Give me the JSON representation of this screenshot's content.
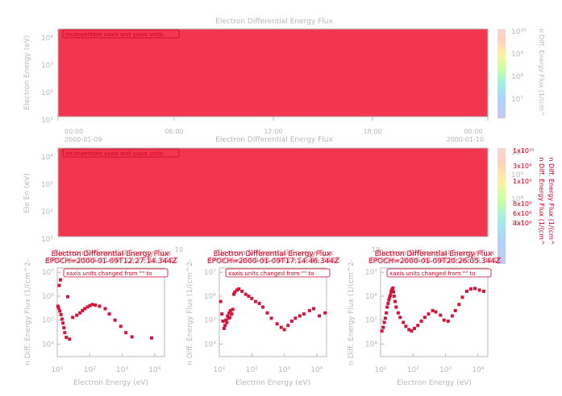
{
  "colors": {
    "spectrogram_fill": "#f23650",
    "error_red": "#cc0022",
    "axis_gray": "#b8b8b8",
    "point_red": "#d4143a",
    "colorbar_stops": [
      "#c8c8f0",
      "#b0d0ff",
      "#a0f0e0",
      "#c8ffa0",
      "#fff0a0",
      "#ffd0c0",
      "#f4d8d8"
    ]
  },
  "top_panel": {
    "title": "Electron Differential Energy Flux",
    "ylabel": "Electron Energy (eV)",
    "yticks": [
      "10⁴",
      "10³",
      "10²",
      "10¹"
    ],
    "xticks": [
      "00:00",
      "06:00",
      "12:00",
      "18:00",
      "00:00"
    ],
    "date_left": "2000-01-09",
    "date_right": "2000-01-10",
    "message": "inconvertible xaxis and yaxis units",
    "colorbar_label": "n Diff. Energy Flux (1/(cm^",
    "colorbar_ticks": [
      "10¹⁰",
      "10⁹",
      "10⁸",
      "10⁷"
    ]
  },
  "middle_panel": {
    "title": "Electron Differential Energy Flux",
    "ylabel": "Ele En (eV)",
    "yticks": [
      "10⁴",
      "10³",
      "10²",
      "10¹"
    ],
    "message": "inconvertible xaxis and yaxis units",
    "colorbar_label": "n Diff. Energy Flux (1/(cm^",
    "colorbar_label_overlay": "n Diff. Energy Flux (1/(cm^",
    "colorbar_ticks_gray": [
      "10¹⁰",
      "10⁹",
      "10⁸",
      "10⁷"
    ],
    "colorbar_ticks_red": [
      "1x10¹⁰",
      "3x10⁹",
      "1x10⁹",
      "8x10⁸",
      "6x10⁸",
      "4x10⁸"
    ],
    "xtick_fragments": [
      "10",
      "18"
    ]
  },
  "bottom_panels": {
    "title": "Electron Differential Energy Flux",
    "ylabel": "n Diff. Energy Flux (1/(cm^2-",
    "xlabel": "Electron Energy (eV)",
    "message": "xaxis units changed from \"\" to",
    "xticks": [
      "10¹",
      "10²",
      "10³",
      "10⁴"
    ],
    "yticks": [
      "10⁷",
      "10⁶",
      "10⁵",
      "10⁴"
    ],
    "epochs": [
      "EPOCH=2000-01-09T12:27:14.344Z",
      "EPOCH=2000-01-09T17:14:46.344Z",
      "EPOCH=2000-01-09T20:26:05.344Z"
    ]
  },
  "chart_data": [
    {
      "type": "heatmap",
      "title": "Electron Differential Energy Flux",
      "ylabel": "Electron Energy (eV)",
      "y_scale": "log",
      "ylim": [
        10,
        20000
      ],
      "x": [
        "00:00",
        "06:00",
        "12:00",
        "18:00",
        "00:00"
      ],
      "annotation": "inconvertible xaxis and yaxis units",
      "colorbar_range": [
        1000000,
        10000000000
      ]
    },
    {
      "type": "heatmap",
      "title": "Electron Differential Energy Flux",
      "ylabel": "Ele En (eV)",
      "y_scale": "log",
      "ylim": [
        10,
        20000
      ],
      "annotation": "inconvertible xaxis and yaxis units"
    },
    {
      "type": "scatter",
      "title": "Electron Differential Energy Flux",
      "subtitle": "EPOCH=2000-01-09T12:27:14.344Z",
      "xlabel": "Electron Energy (eV)",
      "ylabel": "n Diff. Energy Flux (1/(cm^2-",
      "x_scale": "log",
      "y_scale": "log",
      "xlim": [
        10,
        20000
      ],
      "ylim": [
        3000,
        15000000
      ],
      "x": [
        10.5,
        11,
        11.5,
        12,
        12.5,
        13,
        14,
        15,
        16,
        17,
        19,
        21,
        24,
        30,
        40,
        50,
        60,
        70,
        85,
        100,
        120,
        150,
        200,
        300,
        400,
        600,
        900,
        1300,
        2000,
        8000
      ],
      "y": [
        380000,
        320000,
        2800000,
        240000,
        4800000,
        170000,
        110000,
        75000,
        48000,
        30000,
        19000,
        950000,
        16000,
        130000,
        160000,
        200000,
        250000,
        300000,
        350000,
        400000,
        450000,
        420000,
        380000,
        300000,
        180000,
        100000,
        55000,
        30000,
        20000,
        18000
      ]
    },
    {
      "type": "scatter",
      "title": "Electron Differential Energy Flux",
      "subtitle": "EPOCH=2000-01-09T17:14:46.344Z",
      "xlabel": "Electron Energy (eV)",
      "ylabel": "n Diff. Energy Flux (1/(cm^2-",
      "x_scale": "log",
      "y_scale": "log",
      "xlim": [
        10,
        20000
      ],
      "ylim": [
        3000,
        15000000
      ],
      "x": [
        11,
        12,
        13,
        14,
        15,
        16,
        17,
        18,
        19,
        20,
        21,
        22,
        24,
        26,
        28,
        30,
        35,
        40,
        50,
        65,
        80,
        100,
        130,
        170,
        220,
        300,
        400,
        600,
        800,
        1000,
        1300,
        1700,
        2200,
        3000,
        4000,
        6000,
        8000,
        12000,
        18000
      ],
      "y": [
        600000,
        180000,
        90000,
        45000,
        60000,
        100000,
        80000,
        150000,
        120000,
        200000,
        130000,
        250000,
        180000,
        280000,
        1200000,
        1500000,
        1800000,
        2000000,
        1600000,
        1200000,
        1000000,
        800000,
        600000,
        500000,
        350000,
        200000,
        120000,
        70000,
        50000,
        40000,
        60000,
        90000,
        120000,
        150000,
        180000,
        250000,
        300000,
        150000,
        200000
      ]
    },
    {
      "type": "scatter",
      "title": "Electron Differential Energy Flux",
      "subtitle": "EPOCH=2000-01-09T20:26:05.344Z",
      "xlabel": "Electron Energy (eV)",
      "ylabel": "n Diff. Energy Flux (1/(cm^2-",
      "x_scale": "log",
      "y_scale": "log",
      "xlim": [
        10,
        20000
      ],
      "ylim": [
        3000,
        15000000
      ],
      "x": [
        11,
        12,
        13,
        14,
        15,
        16,
        17,
        18,
        19,
        20,
        21,
        22,
        23,
        24,
        25,
        26,
        28,
        30,
        35,
        40,
        50,
        60,
        75,
        90,
        110,
        140,
        180,
        230,
        300,
        400,
        500,
        700,
        900,
        1200,
        1600,
        2000,
        2600,
        3300,
        4500,
        6000,
        8000,
        11000,
        15000
      ],
      "y": [
        35000,
        50000,
        80000,
        120000,
        200000,
        350000,
        500000,
        700000,
        900000,
        1100000,
        1500000,
        1800000,
        2000000,
        2200000,
        1500000,
        1000000,
        600000,
        350000,
        200000,
        130000,
        80000,
        55000,
        40000,
        35000,
        45000,
        60000,
        90000,
        130000,
        180000,
        250000,
        220000,
        160000,
        100000,
        90000,
        150000,
        250000,
        450000,
        900000,
        1600000,
        2000000,
        2100000,
        1800000,
        1600000
      ]
    }
  ]
}
